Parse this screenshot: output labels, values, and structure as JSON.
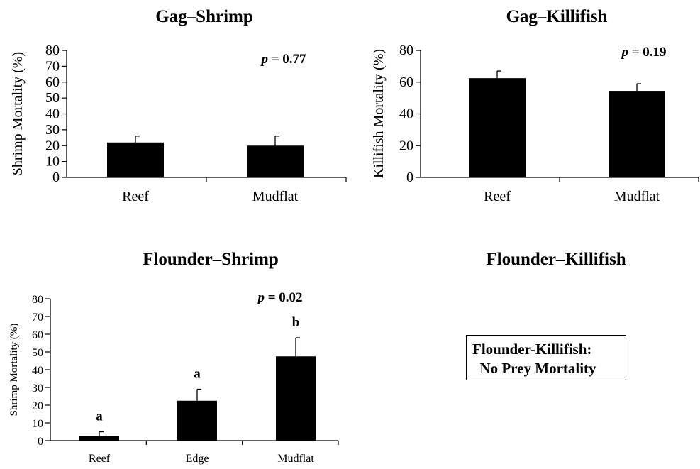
{
  "chart_data": [
    {
      "type": "bar",
      "title": "Gag–Shrimp",
      "ylabel": "Shrimp Mortality (%)",
      "xlabel": "",
      "categories": [
        "Reef",
        "Mudflat"
      ],
      "values": [
        22,
        20
      ],
      "error": [
        4,
        6
      ],
      "ylim": [
        0,
        80
      ],
      "yticks": [
        0,
        10,
        20,
        30,
        40,
        50,
        60,
        70,
        80
      ],
      "annotation": "= 0.77",
      "annotation_prefix": "p",
      "sig_letters": [],
      "grid": false,
      "bar_color": "#000000"
    },
    {
      "type": "bar",
      "title": "Gag–Killifish",
      "ylabel": "Killifish Mortality (%)",
      "xlabel": "",
      "categories": [
        "Reef",
        "Mudflat"
      ],
      "values": [
        62.5,
        54.5
      ],
      "error": [
        4.5,
        4.5
      ],
      "ylim": [
        0,
        80
      ],
      "yticks": [
        0,
        20,
        40,
        60,
        80
      ],
      "annotation": "= 0.19",
      "annotation_prefix": "p",
      "sig_letters": [],
      "grid": false,
      "bar_color": "#000000"
    },
    {
      "type": "bar",
      "title": "Flounder–Shrimp",
      "ylabel": "Shrimp Mortality (%)",
      "xlabel": "",
      "categories": [
        "Reef",
        "Edge",
        "Mudflat"
      ],
      "values": [
        2.5,
        22.5,
        47.5
      ],
      "error": [
        2.5,
        6.5,
        10.5
      ],
      "ylim": [
        0,
        80
      ],
      "yticks": [
        0,
        10,
        20,
        30,
        40,
        50,
        60,
        70,
        80
      ],
      "annotation": "= 0.02",
      "annotation_prefix": "p",
      "sig_letters": [
        "a",
        "a",
        "b"
      ],
      "grid": false,
      "bar_color": "#000000"
    },
    {
      "type": "bar",
      "title": "Flounder–Killifish",
      "categories": [],
      "values": []
    }
  ],
  "note": {
    "line1": "Flounder-Killifish:",
    "line2": "  No Prey Mortality"
  }
}
